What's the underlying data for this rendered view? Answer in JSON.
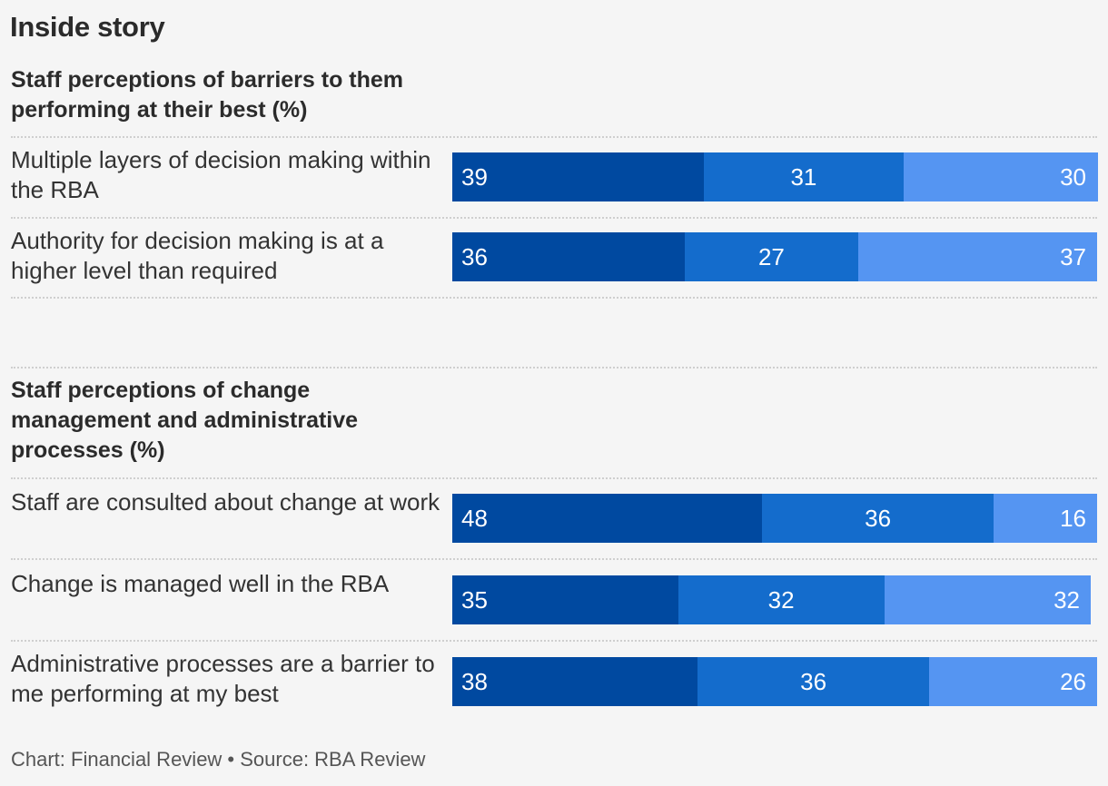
{
  "header": {
    "title": "Inside story"
  },
  "colors": {
    "seg1": "#0049a0",
    "seg2": "#146ccc",
    "seg3": "#5595f2"
  },
  "footer": {
    "text": "Chart: Financial Review • Source: RBA Review"
  },
  "chart_data": [
    {
      "type": "bar",
      "orientation": "horizontal",
      "stacked": true,
      "title": "Staff perceptions of barriers to them performing at their best (%)",
      "categories": [
        "Multiple layers of decision making within the RBA",
        "Authority for decision making is at a higher level than required"
      ],
      "series": [
        {
          "values": [
            39,
            36
          ]
        },
        {
          "values": [
            31,
            27
          ]
        },
        {
          "values": [
            30,
            37
          ]
        }
      ],
      "xlim": [
        0,
        100
      ]
    },
    {
      "type": "bar",
      "orientation": "horizontal",
      "stacked": true,
      "title": "Staff perceptions of change management and administrative processes (%)",
      "categories": [
        "Staff are consulted about change at work",
        "Change is managed well in the RBA",
        "Administrative processes are a barrier to me performing at my best"
      ],
      "series": [
        {
          "values": [
            48,
            35,
            38
          ]
        },
        {
          "values": [
            36,
            32,
            36
          ]
        },
        {
          "values": [
            16,
            32,
            26
          ]
        }
      ],
      "xlim": [
        0,
        100
      ]
    }
  ]
}
